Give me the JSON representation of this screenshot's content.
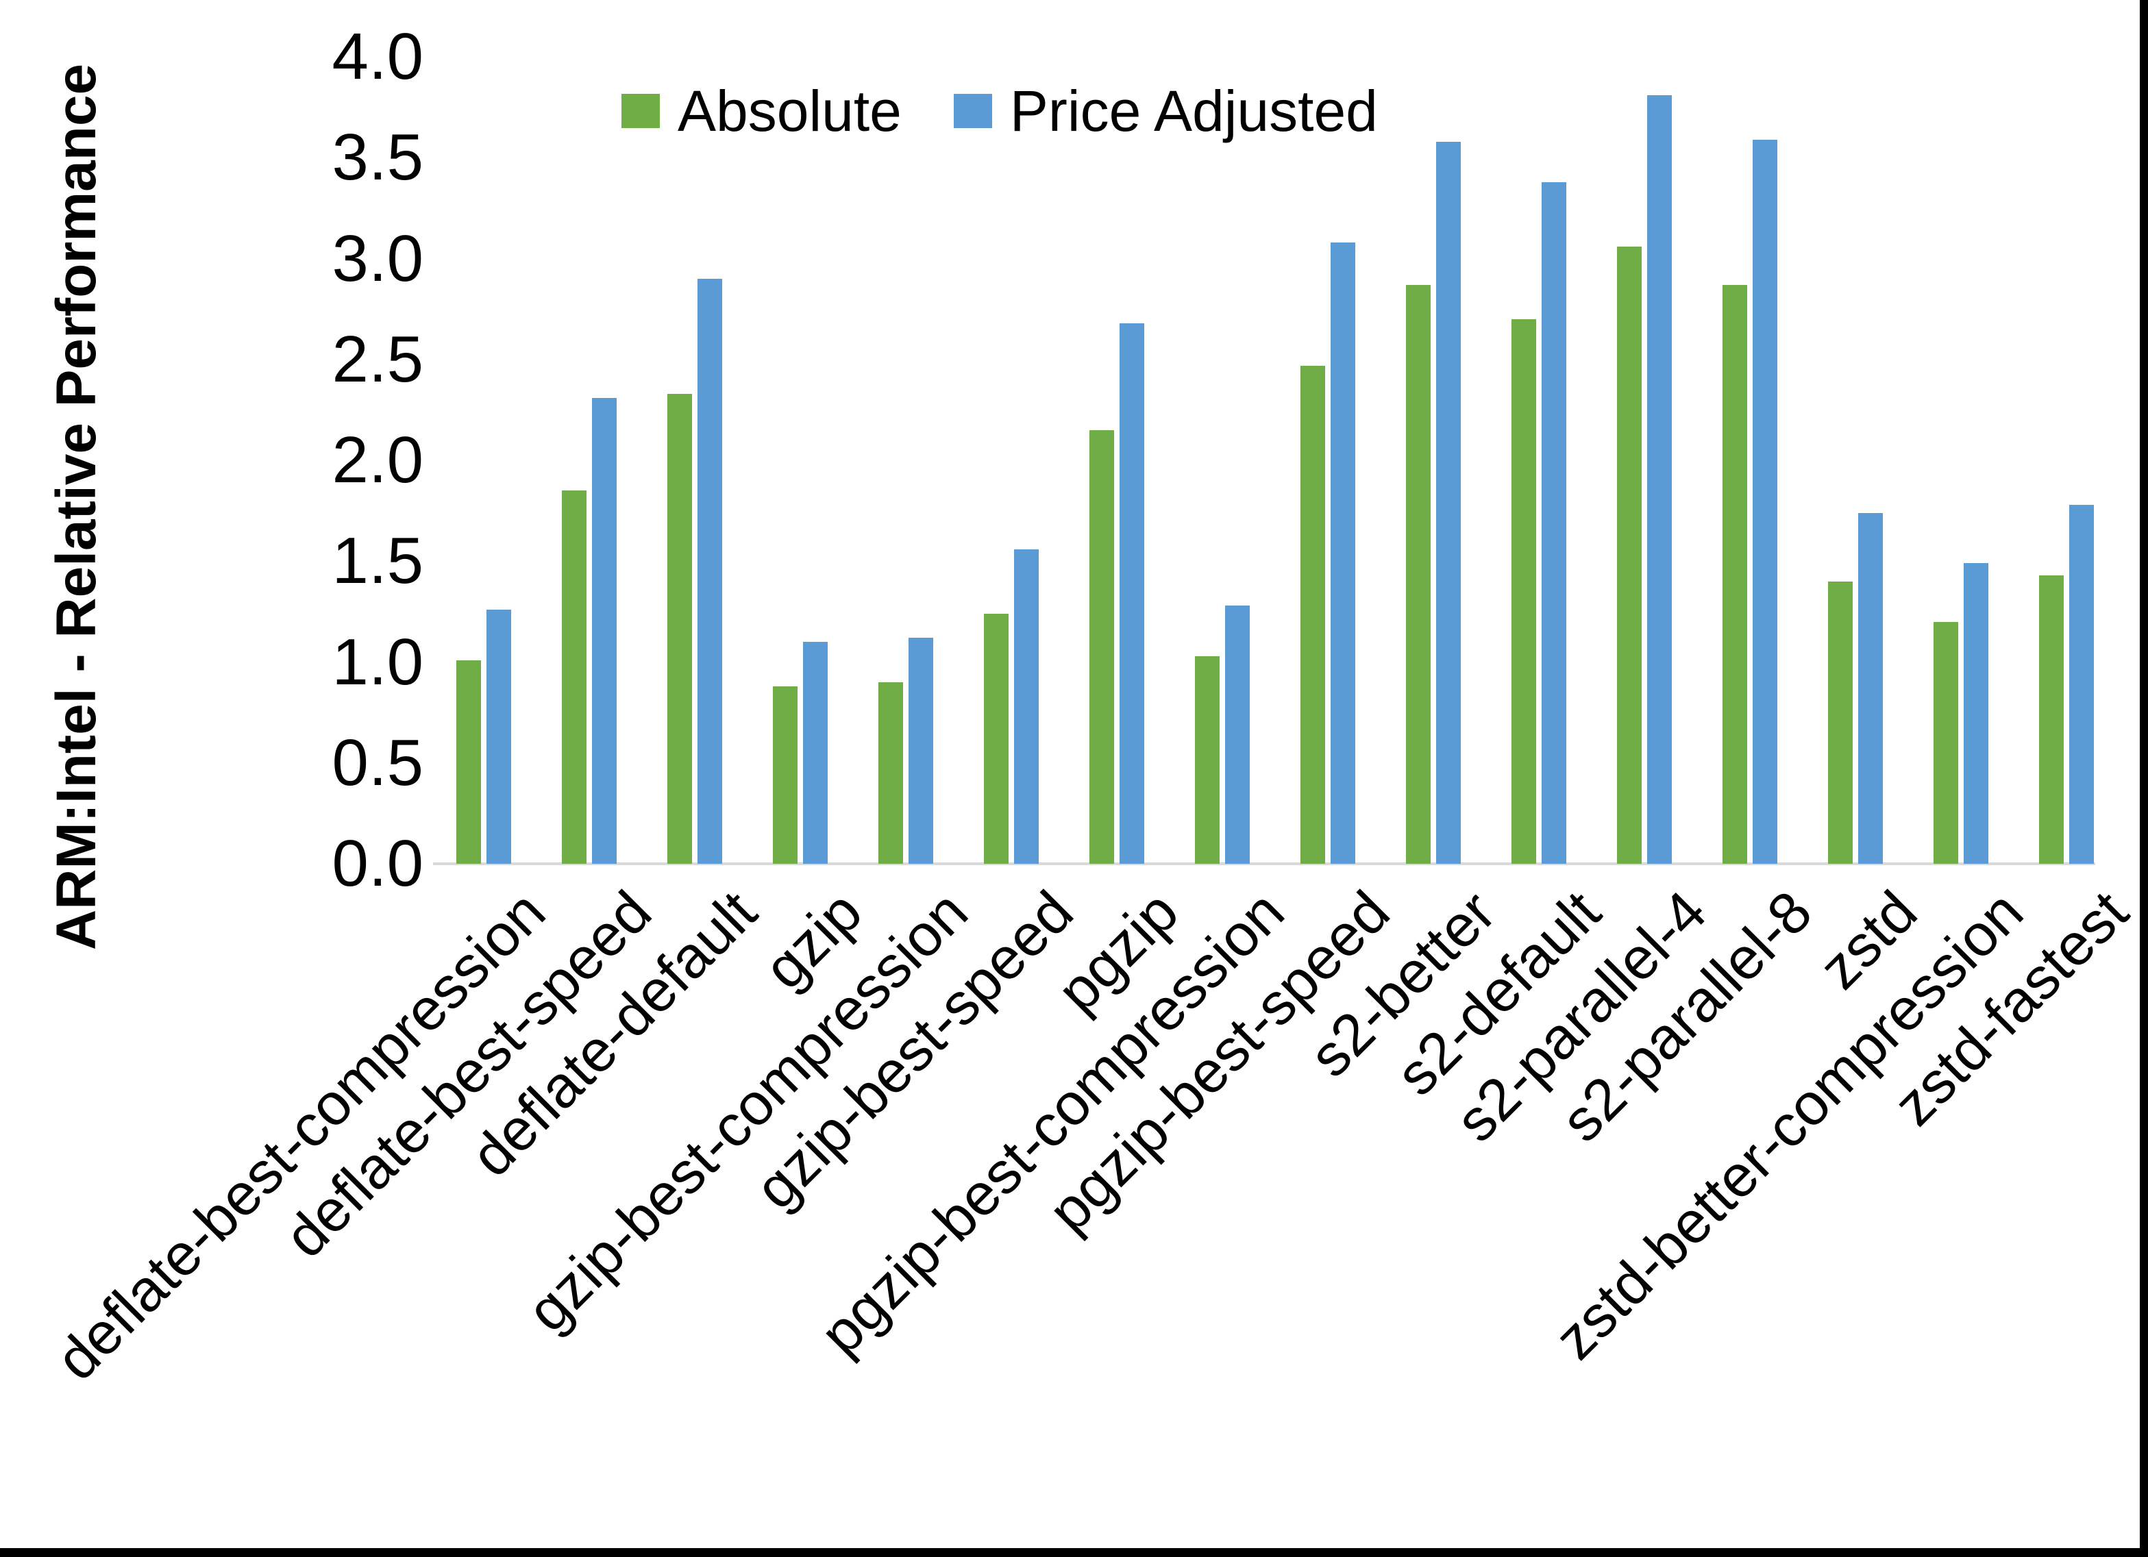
{
  "chart_data": {
    "type": "bar",
    "title": "",
    "xlabel": "",
    "ylabel": "ARM:Intel - Relative Performance",
    "ylim": [
      0.0,
      4.0
    ],
    "y_ticks": [
      "0.0",
      "0.5",
      "1.0",
      "1.5",
      "2.0",
      "2.5",
      "3.0",
      "3.5",
      "4.0"
    ],
    "grid": false,
    "legend_position": "top",
    "categories": [
      "deflate-best-compression",
      "deflate-best-speed",
      "deflate-default",
      "gzip",
      "gzip-best-compression",
      "gzip-best-speed",
      "pgzip",
      "pgzip-best-compression",
      "pgzip-best-speed",
      "s2-better",
      "s2-default",
      "s2-parallel-4",
      "s2-parallel-8",
      "zstd",
      "zstd-better-compression",
      "zstd-fastest"
    ],
    "series": [
      {
        "name": "Absolute",
        "color": "#70AD47",
        "values": [
          1.01,
          1.85,
          2.33,
          0.88,
          0.9,
          1.24,
          2.15,
          1.03,
          2.47,
          2.87,
          2.7,
          3.06,
          2.87,
          1.4,
          1.2,
          1.43
        ]
      },
      {
        "name": "Price Adjusted",
        "color": "#5B9BD5",
        "values": [
          1.26,
          2.31,
          2.9,
          1.1,
          1.12,
          1.56,
          2.68,
          1.28,
          3.08,
          3.58,
          3.38,
          3.81,
          3.59,
          1.74,
          1.49,
          1.78
        ]
      }
    ],
    "axis_line_color": "#D9D9D9",
    "text_color": "#000000"
  }
}
